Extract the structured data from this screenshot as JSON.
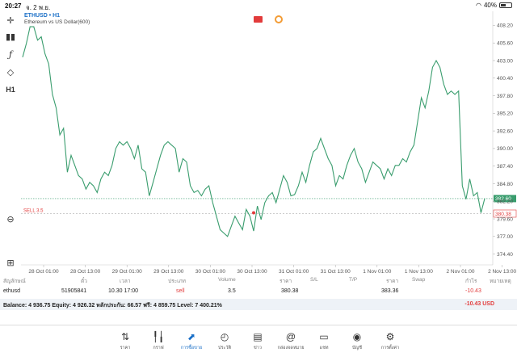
{
  "status": {
    "time": "20:27",
    "date": "จ. 2 พ.ย.",
    "battery": "40%",
    "battery_level": 0.4
  },
  "chart": {
    "symbol": "ETHUSD • H1",
    "description": "Ethereum vs US Dollar(600)",
    "sell_label": "SELL 3.5",
    "bid_price": "382.60",
    "entry_price": "380.38"
  },
  "chart_data": {
    "type": "line",
    "ylim": [
      372.8,
      409.8
    ],
    "y_ticks": [
      408.2,
      405.6,
      403.0,
      400.4,
      397.8,
      395.2,
      392.6,
      390.0,
      387.4,
      384.8,
      382.2,
      379.6,
      377.0,
      374.4
    ],
    "x_ticks": [
      "28 Oct 01:00",
      "28 Oct 13:00",
      "29 Oct 01:00",
      "29 Oct 13:00",
      "30 Oct 01:00",
      "30 Oct 13:00",
      "31 Oct 01:00",
      "31 Oct 13:00",
      "1 Nov 01:00",
      "1 Nov 13:00",
      "2 Nov 01:00",
      "2 Nov 13:00"
    ],
    "levels": {
      "bid": 382.6,
      "entry": 380.38
    },
    "series": [
      {
        "color": "#3a9d6e",
        "values": [
          403.5,
          405.5,
          408.0,
          408.0,
          406.0,
          406.5,
          404.0,
          402.5,
          398.0,
          396.0,
          392.0,
          393.0,
          386.5,
          389.0,
          387.5,
          386.0,
          385.5,
          384.0,
          385.0,
          384.5,
          383.5,
          385.5,
          386.5,
          386.0,
          387.5,
          390.0,
          391.0,
          390.5,
          391.0,
          390.0,
          388.5,
          390.5,
          387.0,
          386.5,
          383.0,
          385.0,
          387.0,
          389.0,
          390.5,
          391.0,
          390.5,
          390.0,
          386.5,
          388.5,
          388.0,
          384.5,
          383.5,
          383.8,
          383.0,
          384.0,
          384.5,
          382.0,
          380.0,
          378.0,
          377.5,
          377.0,
          378.5,
          380.0,
          379.0,
          378.0,
          381.0,
          380.0,
          377.8,
          381.5,
          379.5,
          382.0,
          383.0,
          383.5,
          382.0,
          384.0,
          386.0,
          385.0,
          383.0,
          383.2,
          384.5,
          386.5,
          385.0,
          387.5,
          389.5,
          390.0,
          391.5,
          390.0,
          388.5,
          387.5,
          384.5,
          386.0,
          385.5,
          387.5,
          389.0,
          390.0,
          388.0,
          387.0,
          385.0,
          386.5,
          388.0,
          387.5,
          387.0,
          385.5,
          387.0,
          386.0,
          387.5,
          387.5,
          388.5,
          388.0,
          389.5,
          390.5,
          394.0,
          397.5,
          396.0,
          398.5,
          402.0,
          403.0,
          402.0,
          399.5,
          398.0,
          398.5,
          398.0,
          398.5,
          384.5,
          382.5,
          385.5,
          383.0,
          383.5,
          380.5,
          382.6
        ]
      }
    ]
  },
  "trade": {
    "headers": [
      "สัญลักษณ์",
      "ตั๋ว",
      "เวลา",
      "ประเภท",
      "Volume",
      "ราคา",
      "S/L",
      "T/P",
      "ราคา",
      "Swap",
      "กำไร",
      "หมายเหตุ"
    ],
    "row": {
      "symbol": "ethusd",
      "ticket": "51905841",
      "time": "10.30 17:00",
      "type": "sell",
      "volume": "3.5",
      "price": "380.38",
      "current_price": "383.36",
      "profit": "-10.43"
    }
  },
  "balance": {
    "text": "Balance: 4 936.75 Equity: 4 926.32 หลักประกัน: 66.57 ฟรี: 4 859.75 Level: 7 400.21%",
    "profit": "-10.43  USD"
  },
  "nav": [
    {
      "name": "quotes",
      "label": "ราคา",
      "icon": "arrows-updown-icon"
    },
    {
      "name": "chart",
      "label": "กราฟ",
      "icon": "candles-icon"
    },
    {
      "name": "trade",
      "label": "การซื้อขาย",
      "icon": "trend-icon",
      "active": true
    },
    {
      "name": "history",
      "label": "ประวัติ",
      "icon": "clock-icon"
    },
    {
      "name": "news",
      "label": "ข่าว",
      "icon": "news-icon"
    },
    {
      "name": "mailbox",
      "label": "กล่องจดหมาย",
      "icon": "at-icon"
    },
    {
      "name": "chat",
      "label": "แชท",
      "icon": "chat-icon"
    },
    {
      "name": "accounts",
      "label": "บัญชี",
      "icon": "user-icon"
    },
    {
      "name": "settings",
      "label": "การตั้งค่า",
      "icon": "gear-icon"
    }
  ],
  "colors": {
    "line": "#3a9d6e",
    "bid": "#3a9d6e",
    "entry": "#e23b3b",
    "accent": "#1a6fc7"
  }
}
